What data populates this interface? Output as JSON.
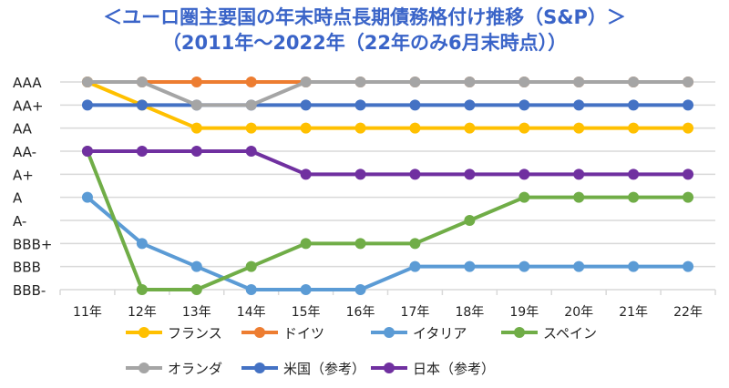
{
  "chart_data": {
    "type": "line",
    "title": "＜ユーロ圏主要国の年末時点長期債務格付け推移（S&P）＞",
    "subtitle": "（2011年～2022年（22年のみ6月末時点））",
    "categories": [
      "11年",
      "12年",
      "13年",
      "14年",
      "15年",
      "16年",
      "17年",
      "18年",
      "19年",
      "20年",
      "21年",
      "22年"
    ],
    "y_ticks": [
      "AAA",
      "AA+",
      "AA",
      "AA-",
      "A+",
      "A",
      "A-",
      "BBB+",
      "BBB",
      "BBB-"
    ],
    "grid": true,
    "legend_placement": "bottom",
    "series": [
      {
        "name": "フランス",
        "color": "#FFC000",
        "values": [
          "AAA",
          "AA+",
          "AA",
          "AA",
          "AA",
          "AA",
          "AA",
          "AA",
          "AA",
          "AA",
          "AA",
          "AA"
        ]
      },
      {
        "name": "ドイツ",
        "color": "#ED7D31",
        "values": [
          "AAA",
          "AAA",
          "AAA",
          "AAA",
          "AAA",
          "AAA",
          "AAA",
          "AAA",
          "AAA",
          "AAA",
          "AAA",
          "AAA"
        ]
      },
      {
        "name": "イタリア",
        "color": "#5B9BD5",
        "values": [
          "A",
          "BBB+",
          "BBB",
          "BBB-",
          "BBB-",
          "BBB-",
          "BBB",
          "BBB",
          "BBB",
          "BBB",
          "BBB",
          "BBB"
        ]
      },
      {
        "name": "スペイン",
        "color": "#70AD47",
        "values": [
          "AA-",
          "BBB-",
          "BBB-",
          "BBB",
          "BBB+",
          "BBB+",
          "BBB+",
          "A-",
          "A",
          "A",
          "A",
          "A"
        ]
      },
      {
        "name": "オランダ",
        "color": "#A5A5A5",
        "values": [
          "AAA",
          "AAA",
          "AA+",
          "AA+",
          "AAA",
          "AAA",
          "AAA",
          "AAA",
          "AAA",
          "AAA",
          "AAA",
          "AAA"
        ]
      },
      {
        "name": "米国（参考）",
        "color": "#4472C4",
        "values": [
          "AA+",
          "AA+",
          "AA+",
          "AA+",
          "AA+",
          "AA+",
          "AA+",
          "AA+",
          "AA+",
          "AA+",
          "AA+",
          "AA+"
        ]
      },
      {
        "name": "日本（参考）",
        "color": "#7030A0",
        "values": [
          "AA-",
          "AA-",
          "AA-",
          "AA-",
          "A+",
          "A+",
          "A+",
          "A+",
          "A+",
          "A+",
          "A+",
          "A+"
        ]
      }
    ]
  }
}
